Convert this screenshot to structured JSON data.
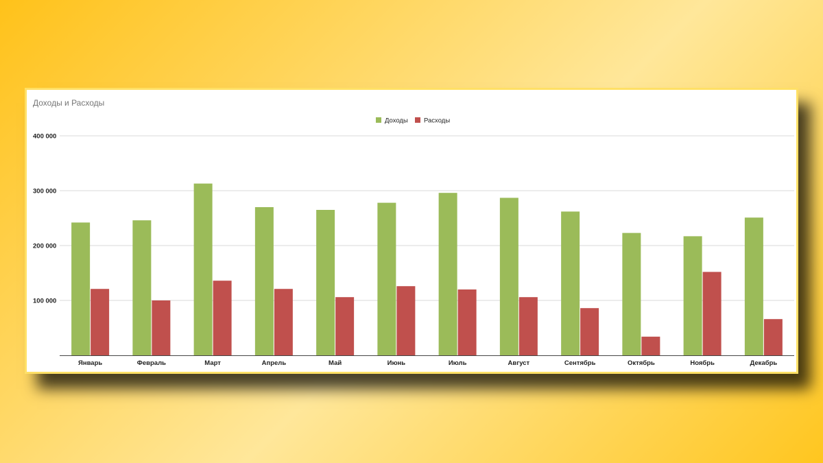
{
  "chart_data": {
    "type": "bar",
    "title": "Доходы и Расходы",
    "categories": [
      "Январь",
      "Февраль",
      "Март",
      "Апрель",
      "Май",
      "Июнь",
      "Июль",
      "Август",
      "Сентябрь",
      "Октябрь",
      "Ноябрь",
      "Декабрь"
    ],
    "series": [
      {
        "name": "Доходы",
        "color": "#9bbb59",
        "values": [
          242000,
          246000,
          313000,
          270000,
          265000,
          278000,
          296000,
          287000,
          262000,
          223000,
          217000,
          251000
        ]
      },
      {
        "name": "Расходы",
        "color": "#c0504d",
        "values": [
          121000,
          100000,
          136000,
          121000,
          106000,
          126000,
          120000,
          106000,
          86000,
          34000,
          152000,
          66000
        ]
      }
    ],
    "ylim": [
      0,
      400000
    ],
    "yticks": [
      100000,
      200000,
      300000,
      400000
    ],
    "ytick_labels": [
      "100 000",
      "200 000",
      "300 000",
      "400 000"
    ],
    "xlabel": "",
    "ylabel": "",
    "legend": "top-center",
    "grid": true
  }
}
